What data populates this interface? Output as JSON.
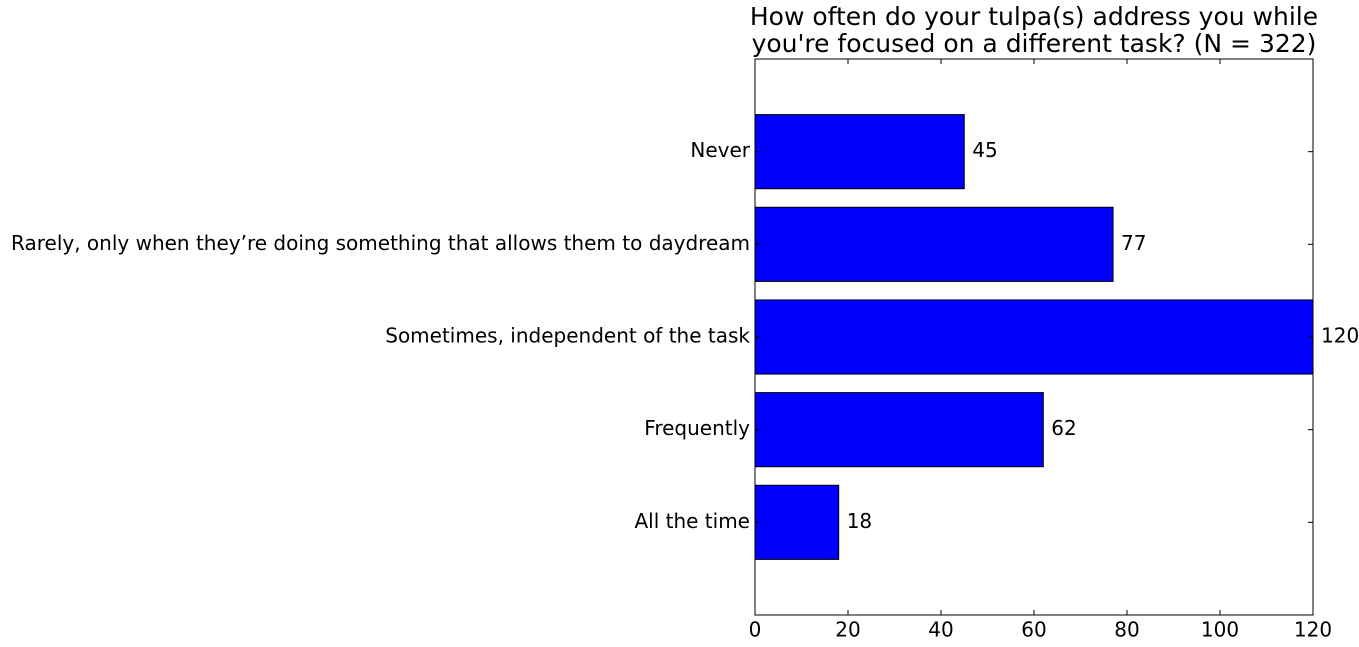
{
  "chart_data": {
    "type": "hbar",
    "title": [
      "How often do your tulpa(s) address you while",
      "you're focused on a different task? (N = 322)"
    ],
    "categories": [
      "Never",
      "Rarely, only when they’re doing something that allows them to daydream",
      "Sometimes, independent of the task",
      "Frequently",
      "All the time"
    ],
    "values": [
      45,
      77,
      120,
      62,
      18
    ],
    "color": "#0000ff",
    "xlim": [
      0,
      120
    ],
    "xticks": [
      0,
      20,
      40,
      60,
      80,
      100,
      120
    ]
  }
}
